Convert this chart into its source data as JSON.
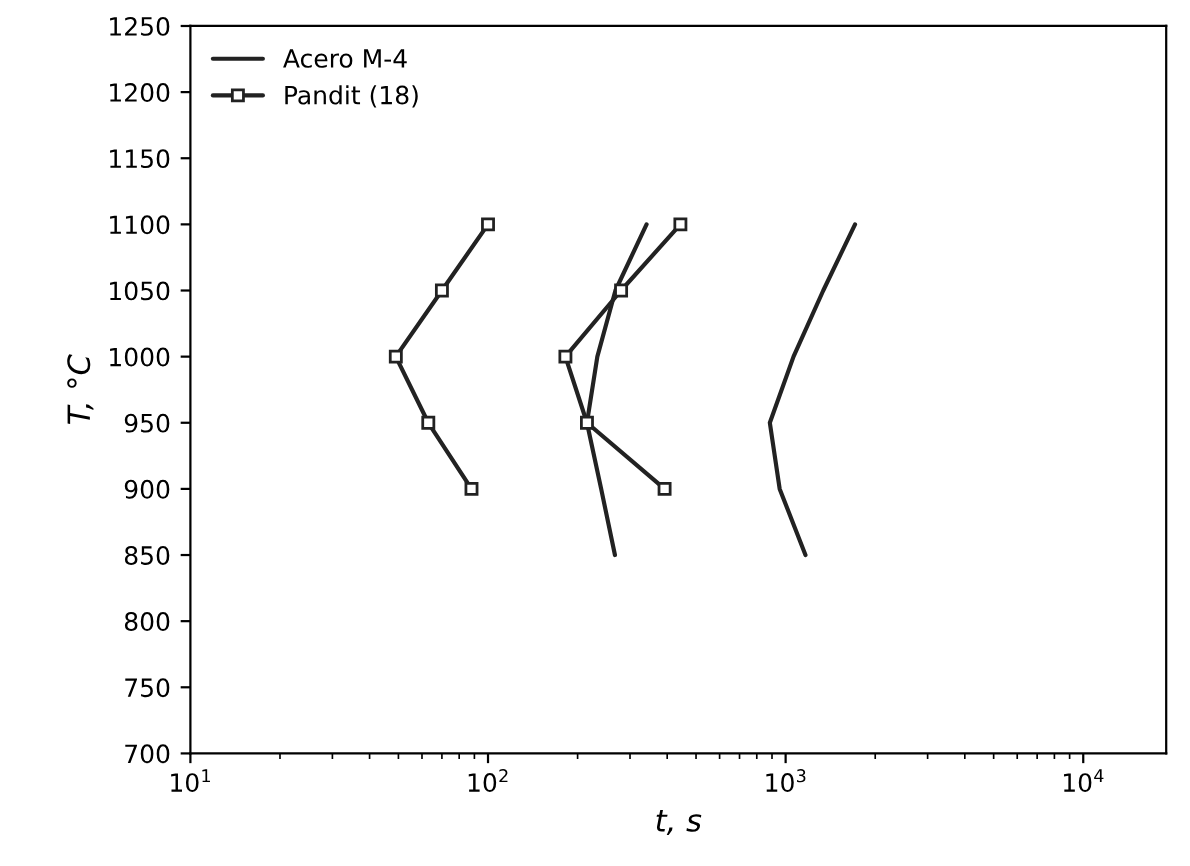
{
  "chart_data": {
    "type": "line",
    "xlabel": "t, s",
    "ylabel": "T, °C",
    "log": "x",
    "xlim": [
      10,
      19000
    ],
    "xticks": [
      {
        "value": 10,
        "label": "10$^{1}$"
      },
      {
        "value": 100,
        "label": "10$^{2}$"
      },
      {
        "value": 1000,
        "label": "10$^{3}$"
      },
      {
        "value": 10000,
        "label": "10$^{4}$"
      }
    ],
    "ylim": [
      700,
      1250
    ],
    "yticks": [
      700,
      750,
      800,
      850,
      900,
      950,
      1000,
      1050,
      1100,
      1150,
      1200,
      1250
    ],
    "legend": "top left",
    "grid": false,
    "line_style": "solid",
    "series": [
      {
        "name": "Acero M-4",
        "color": "#222222",
        "marker": "none",
        "x": [
          341,
          268,
          233,
          215,
          240,
          267
        ],
        "values": [
          1100,
          1050,
          1000,
          950,
          900,
          850
        ]
      },
      {
        "color": "#222222",
        "marker": "none",
        "x": [
          1711,
          1338,
          1063,
          885,
          955,
          1166
        ],
        "values": [
          1100,
          1050,
          1000,
          950,
          900,
          850
        ]
      },
      {
        "name": "Pandit (18)",
        "color": "#222222",
        "marker": "square",
        "x": [
          100,
          70,
          49,
          63,
          88
        ],
        "values": [
          1100,
          1050,
          1000,
          950,
          900
        ]
      },
      {
        "color": "#222222",
        "marker": "square",
        "x": [
          443,
          280,
          182,
          215,
          392
        ],
        "values": [
          1100,
          1050,
          1000,
          950,
          900
        ]
      }
    ]
  }
}
